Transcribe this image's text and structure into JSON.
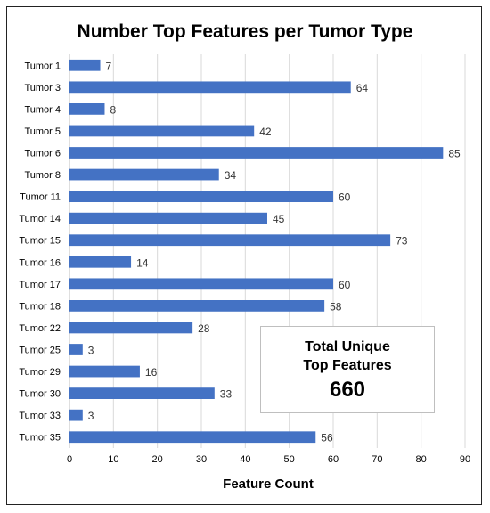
{
  "chart_data": {
    "type": "bar",
    "orientation": "horizontal",
    "title": "Number Top Features per Tumor Type",
    "xlabel": "Feature Count",
    "ylabel": "",
    "categories": [
      "Tumor 1",
      "Tumor 3",
      "Tumor 4",
      "Tumor 5",
      "Tumor 6",
      "Tumor 8",
      "Tumor 11",
      "Tumor 14",
      "Tumor 15",
      "Tumor 16",
      "Tumor 17",
      "Tumor 18",
      "Tumor 22",
      "Tumor 25",
      "Tumor 29",
      "Tumor 30",
      "Tumor 33",
      "Tumor 35"
    ],
    "values": [
      7,
      64,
      8,
      42,
      85,
      34,
      60,
      45,
      73,
      14,
      60,
      58,
      28,
      3,
      16,
      33,
      3,
      56
    ],
    "xlim": [
      0,
      90
    ],
    "xticks": [
      0,
      10,
      20,
      30,
      40,
      50,
      60,
      70,
      80,
      90
    ],
    "grid": true,
    "data_labels": true,
    "bar_color": "#4472c4",
    "annotation": {
      "label": "Total Unique\nTop Features",
      "value": "660"
    }
  }
}
